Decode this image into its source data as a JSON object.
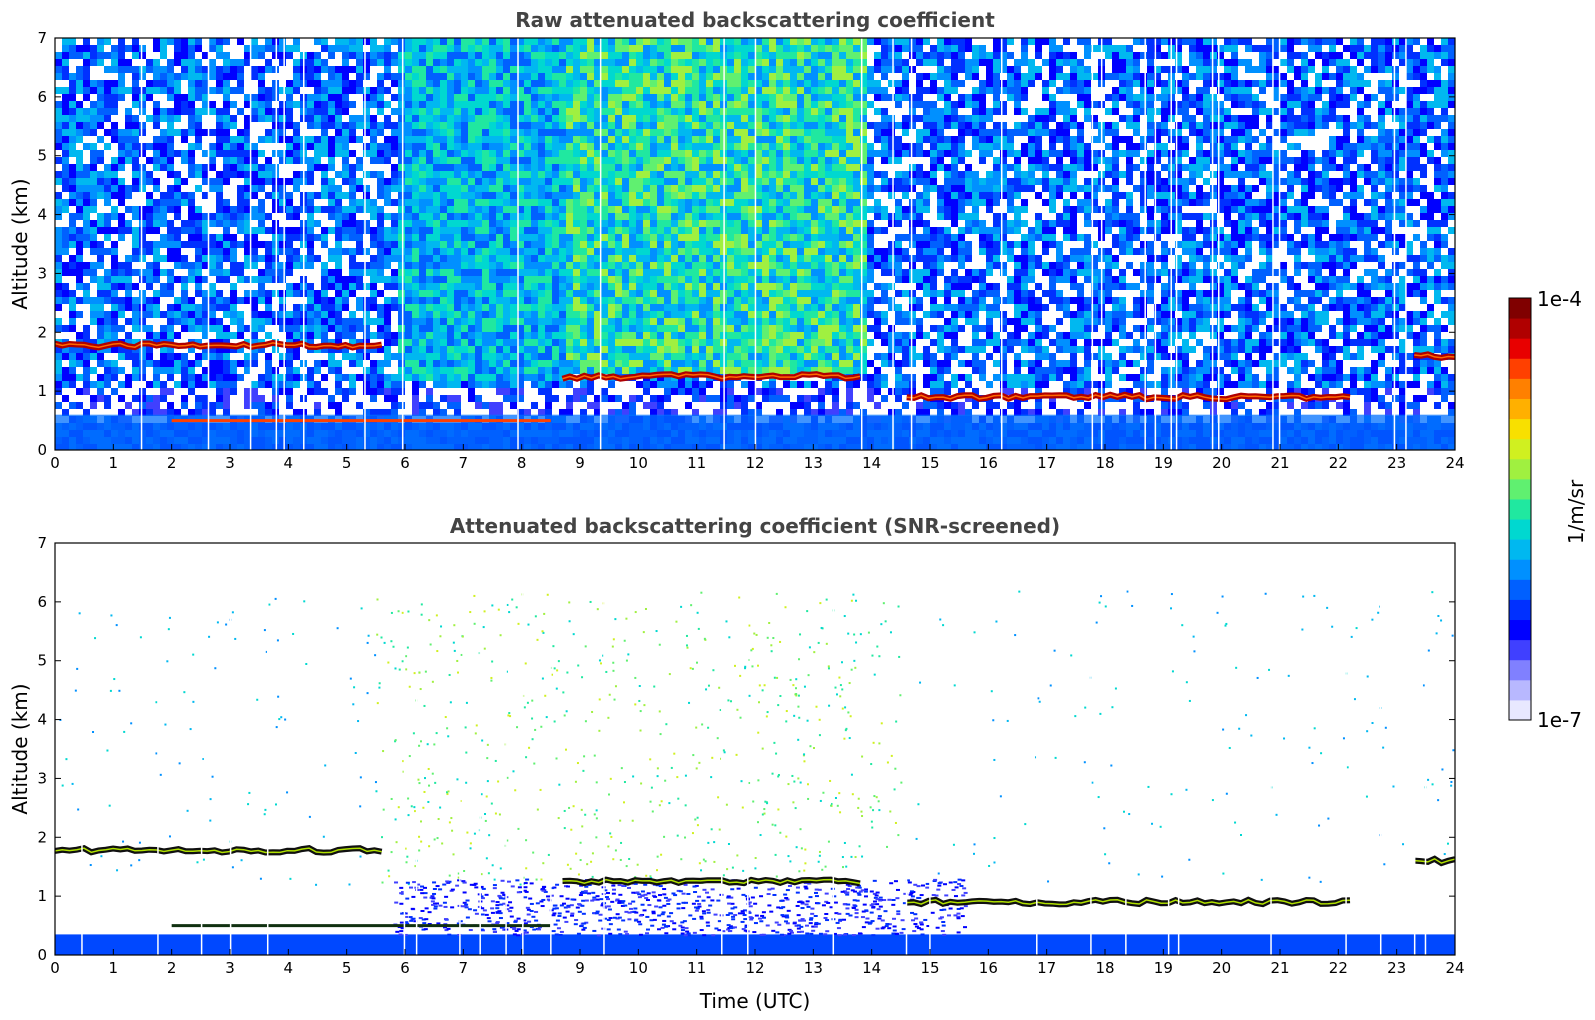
{
  "figure": {
    "colorbar": {
      "max_label": "1e-4",
      "min_label": "1e-7",
      "unit_label": "1/m/sr",
      "colors": [
        "#e8e8ff",
        "#b8b8ff",
        "#8080ff",
        "#4040ff",
        "#0000ff",
        "#0030ff",
        "#0060ff",
        "#0090ff",
        "#00b8f0",
        "#00d8d0",
        "#20e8a0",
        "#60f070",
        "#a0f040",
        "#d0f020",
        "#f8e000",
        "#ffb000",
        "#ff8000",
        "#ff4000",
        "#e80000",
        "#b00000",
        "#800000"
      ]
    }
  },
  "chart_data": [
    {
      "type": "heatmap",
      "title": "Raw attenuated backscattering coefficient",
      "xlabel": "",
      "ylabel": "Altitude (km)",
      "xlim": [
        0,
        24
      ],
      "ylim": [
        0,
        7
      ],
      "xticks": [
        "0",
        "1",
        "2",
        "3",
        "4",
        "5",
        "6",
        "7",
        "8",
        "9",
        "10",
        "11",
        "12",
        "13",
        "14",
        "15",
        "16",
        "17",
        "18",
        "19",
        "20",
        "21",
        "22",
        "23",
        "24"
      ],
      "yticks": [
        "0",
        "1",
        "2",
        "3",
        "4",
        "5",
        "6",
        "7"
      ],
      "cloud_layer_km": [
        {
          "t0": 0.0,
          "t1": 5.6,
          "alt": 1.78
        },
        {
          "t0": 8.7,
          "t1": 13.8,
          "alt": 1.25
        },
        {
          "t0": 14.6,
          "t1": 22.2,
          "alt": 0.9
        },
        {
          "t0": 23.3,
          "t1": 24.0,
          "alt": 1.6
        }
      ],
      "boundary_layer_km": [
        {
          "t0": 2.0,
          "t1": 8.5,
          "alt": 0.5
        }
      ]
    },
    {
      "type": "heatmap",
      "title": "Attenuated backscattering coefficient (SNR-screened)",
      "xlabel": "Time (UTC)",
      "ylabel": "Altitude (km)",
      "xlim": [
        0,
        24
      ],
      "ylim": [
        0,
        7
      ],
      "xticks": [
        "0",
        "1",
        "2",
        "3",
        "4",
        "5",
        "6",
        "7",
        "8",
        "9",
        "10",
        "11",
        "12",
        "13",
        "14",
        "15",
        "16",
        "17",
        "18",
        "19",
        "20",
        "21",
        "22",
        "23",
        "24"
      ],
      "yticks": [
        "0",
        "1",
        "2",
        "3",
        "4",
        "5",
        "6",
        "7"
      ],
      "cloud_layer_km": [
        {
          "t0": 0.0,
          "t1": 5.6,
          "alt": 1.78
        },
        {
          "t0": 8.7,
          "t1": 13.8,
          "alt": 1.25
        },
        {
          "t0": 14.6,
          "t1": 22.2,
          "alt": 0.9
        },
        {
          "t0": 23.3,
          "t1": 24.0,
          "alt": 1.6
        }
      ],
      "boundary_layer_km": [
        {
          "t0": 2.0,
          "t1": 8.5,
          "alt": 0.5
        }
      ]
    }
  ]
}
